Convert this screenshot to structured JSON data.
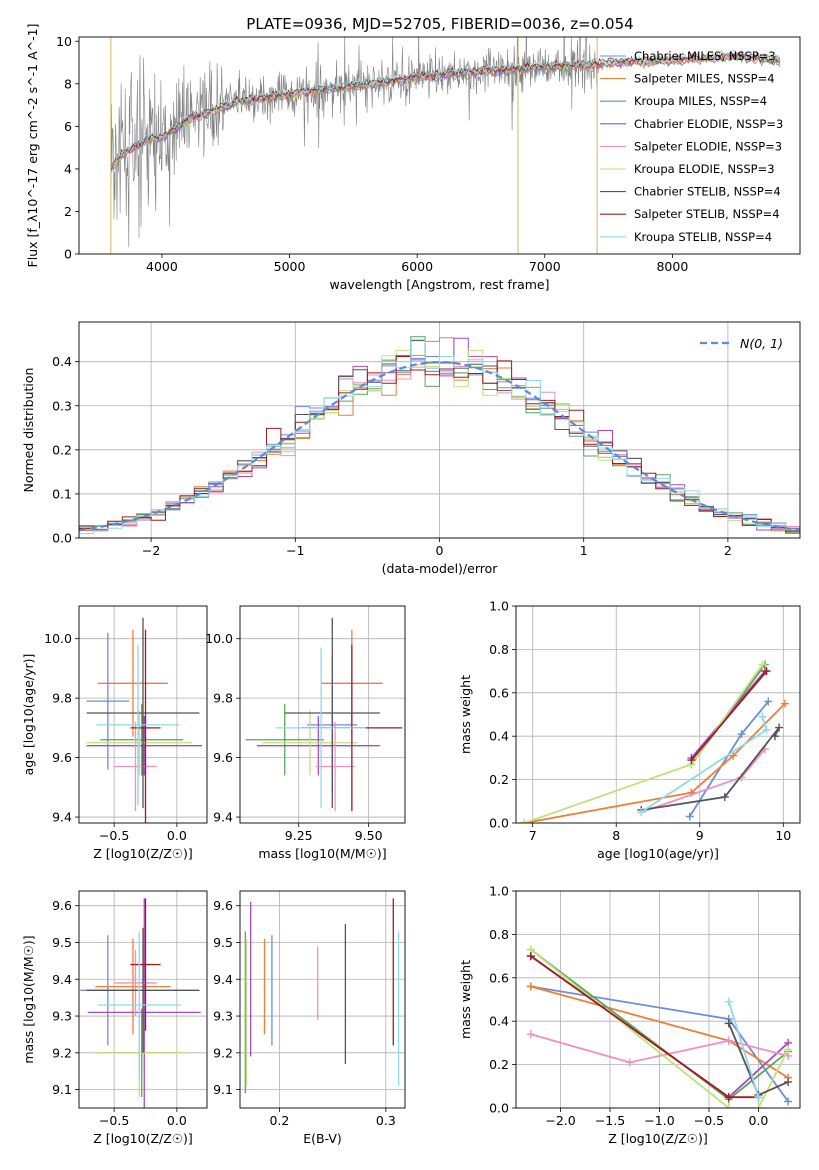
{
  "figure": {
    "title": "PLATE=0936, MJD=52705, FIBERID=0036, z=0.054"
  },
  "colors": {
    "observed": "#808080",
    "grid": "#b0b0b0",
    "series": [
      "#6a8fd8",
      "#ee7f3a",
      "#5aa55a",
      "#a64ac9",
      "#f28fc1",
      "#bfe27a",
      "#555555",
      "#a01c1c",
      "#8fd9e8"
    ]
  },
  "chart_data": [
    {
      "id": "spectrum",
      "type": "line",
      "xlabel": "wavelength [Angstrom, rest frame]",
      "ylabel": "Flux [f_λ10^-17 erg cm^-2 s^-1 A^-1]",
      "xlim": [
        3350,
        9000
      ],
      "ylim": [
        0,
        10.2
      ],
      "xticks": [
        4000,
        5000,
        6000,
        7000,
        8000
      ],
      "yticks": [
        0,
        2,
        4,
        6,
        8,
        10
      ],
      "grid": false,
      "legend_position": "right",
      "legend": [
        "Chabrier MILES, NSSP=3",
        "Salpeter MILES, NSSP=4",
        "Kroupa MILES, NSSP=4",
        "Chabrier ELODIE, NSSP=3",
        "Salpeter ELODIE, NSSP=3",
        "Kroupa ELODIE, NSSP=3",
        "Chabrier STELIB, NSSP=4",
        "Salpeter STELIB, NSSP=4",
        "Kroupa STELIB, NSSP=4"
      ],
      "continuum": {
        "wavelength": [
          3600,
          3700,
          3800,
          3900,
          4000,
          4200,
          4400,
          4600,
          5000,
          5500,
          6000,
          6500,
          7000,
          7400,
          7500,
          8000,
          8500,
          8800
        ],
        "flux": [
          4.0,
          4.7,
          5.1,
          5.4,
          5.5,
          6.3,
          6.7,
          7.2,
          7.5,
          7.9,
          8.3,
          8.6,
          8.8,
          8.9,
          9.0,
          9.1,
          9.3,
          9.1
        ]
      },
      "observed_range": [
        3600,
        7420
      ]
    },
    {
      "id": "residuals",
      "type": "line",
      "xlabel": "(data-model)/error",
      "ylabel": "Normed distribution",
      "xlim": [
        -2.5,
        2.5
      ],
      "ylim": [
        0,
        0.49
      ],
      "xticks": [
        -2,
        -1,
        0,
        1,
        2
      ],
      "yticks": [
        0.0,
        0.1,
        0.2,
        0.3,
        0.4
      ],
      "grid": true,
      "legend_position": "top-right",
      "legend": [
        "N(0, 1)"
      ],
      "bin_width": 0.1
    },
    {
      "id": "age-vs-Z",
      "type": "scatter",
      "xlabel": "Z [log10(Z/Z☉)]",
      "ylabel": "age  [log10(age/yr)]",
      "xlim": [
        -0.78,
        0.24
      ],
      "ylim": [
        9.38,
        10.11
      ],
      "xticks": [
        -0.5,
        0.0
      ],
      "yticks": [
        9.4,
        9.6,
        9.8,
        10.0
      ],
      "grid": true,
      "points": [
        {
          "x": -0.55,
          "xerr": 0.17,
          "y": 9.79,
          "yerr": 0.23
        },
        {
          "x": -0.35,
          "xerr": 0.28,
          "y": 9.85,
          "yerr": 0.18
        },
        {
          "x": -0.28,
          "xerr": 0.33,
          "y": 9.66,
          "yerr": 0.12
        },
        {
          "x": -0.26,
          "xerr": 0.46,
          "y": 9.64,
          "yerr": 0.1
        },
        {
          "x": -0.33,
          "xerr": 0.17,
          "y": 9.57,
          "yerr": 0.15
        },
        {
          "x": -0.3,
          "xerr": 0.42,
          "y": 9.65,
          "yerr": 0.11
        },
        {
          "x": -0.27,
          "xerr": 0.45,
          "y": 9.75,
          "yerr": 0.32
        },
        {
          "x": -0.25,
          "xerr": 0.12,
          "y": 9.7,
          "yerr": 0.33
        },
        {
          "x": -0.31,
          "xerr": 0.33,
          "y": 9.71,
          "yerr": 0.27
        }
      ]
    },
    {
      "id": "age-vs-mass",
      "type": "scatter",
      "xlabel": "mass [log10(M/M☉)]",
      "ylabel": "",
      "xlim": [
        9.04,
        9.63
      ],
      "ylim": [
        9.38,
        10.11
      ],
      "xticks": [
        9.25,
        9.5
      ],
      "yticks": [
        9.4,
        9.6,
        9.8,
        10.0
      ],
      "grid": true,
      "points": [
        {
          "x": 9.37,
          "xerr": 0.09,
          "y": 9.71,
          "yerr": 0.23
        },
        {
          "x": 9.44,
          "xerr": 0.11,
          "y": 9.85,
          "yerr": 0.18
        },
        {
          "x": 9.2,
          "xerr": 0.14,
          "y": 9.66,
          "yerr": 0.12
        },
        {
          "x": 9.32,
          "xerr": 0.22,
          "y": 9.64,
          "yerr": 0.1
        },
        {
          "x": 9.38,
          "xerr": 0.07,
          "y": 9.57,
          "yerr": 0.15
        },
        {
          "x": 9.29,
          "xerr": 0.17,
          "y": 9.65,
          "yerr": 0.11
        },
        {
          "x": 9.37,
          "xerr": 0.17,
          "y": 9.75,
          "yerr": 0.32
        },
        {
          "x": 9.44,
          "xerr": 0.18,
          "y": 9.7,
          "yerr": 0.28
        },
        {
          "x": 9.33,
          "xerr": 0.16,
          "y": 9.7,
          "yerr": 0.27
        }
      ]
    },
    {
      "id": "weights-vs-age",
      "type": "line",
      "xlabel": "age  [log10(age/yr)]",
      "ylabel": "mass weight",
      "xlim": [
        6.8,
        10.2
      ],
      "ylim": [
        0,
        1.0
      ],
      "xticks": [
        7,
        8,
        9,
        10
      ],
      "yticks": [
        0.0,
        0.2,
        0.4,
        0.6,
        0.8,
        1.0
      ],
      "grid": true,
      "series_x": [
        [
          8.88,
          9.5,
          9.82
        ],
        [
          6.9,
          8.9,
          9.4,
          10.02
        ],
        [
          8.9,
          9.78
        ],
        [
          8.9,
          9.78
        ],
        [
          8.3,
          9.5,
          9.78
        ],
        [
          6.9,
          8.9,
          9.75
        ],
        [
          8.3,
          9.3,
          9.95,
          9.9
        ],
        [
          8.9,
          9.8
        ],
        [
          8.3,
          9.8,
          9.75
        ]
      ],
      "series_y": [
        [
          0.03,
          0.41,
          0.56
        ],
        [
          0.0,
          0.14,
          0.31,
          0.55
        ],
        [
          0.27,
          0.73
        ],
        [
          0.3,
          0.7
        ],
        [
          0.05,
          0.21,
          0.34
        ],
        [
          0.0,
          0.27,
          0.73
        ],
        [
          0.06,
          0.12,
          0.44,
          0.4
        ],
        [
          0.29,
          0.7
        ],
        [
          0.05,
          0.43,
          0.49
        ]
      ]
    },
    {
      "id": "mass-vs-Z",
      "type": "scatter",
      "xlabel": "Z [log10(Z/Z☉)]",
      "ylabel": "mass [log10(M/M☉)]",
      "xlim": [
        -0.78,
        0.24
      ],
      "ylim": [
        9.05,
        9.64
      ],
      "xticks": [
        -0.5,
        0.0
      ],
      "yticks": [
        9.1,
        9.2,
        9.3,
        9.4,
        9.5,
        9.6
      ],
      "grid": true,
      "points": [
        {
          "x": -0.55,
          "xerr": 0.22,
          "y": 9.37,
          "yerr": 0.15
        },
        {
          "x": -0.35,
          "xerr": 0.3,
          "y": 9.38,
          "yerr": 0.13
        },
        {
          "x": -0.28,
          "xerr": 0.33,
          "y": 9.2,
          "yerr": 0.12
        },
        {
          "x": -0.26,
          "xerr": 0.45,
          "y": 9.31,
          "yerr": 0.31
        },
        {
          "x": -0.33,
          "xerr": 0.17,
          "y": 9.39,
          "yerr": 0.09
        },
        {
          "x": -0.3,
          "xerr": 0.37,
          "y": 9.2,
          "yerr": 0.12
        },
        {
          "x": -0.27,
          "xerr": 0.45,
          "y": 9.37,
          "yerr": 0.17
        },
        {
          "x": -0.25,
          "xerr": 0.12,
          "y": 9.44,
          "yerr": 0.18
        },
        {
          "x": -0.3,
          "xerr": 0.33,
          "y": 9.33,
          "yerr": 0.2
        }
      ]
    },
    {
      "id": "mass-vs-ebv",
      "type": "scatter",
      "xlabel": "E(B-V)",
      "ylabel": "",
      "xlim": [
        0.163,
        0.318
      ],
      "ylim": [
        9.05,
        9.64
      ],
      "xticks": [
        0.2,
        0.3
      ],
      "yticks": [
        9.1,
        9.2,
        9.3,
        9.4,
        9.5,
        9.6
      ],
      "grid": true,
      "points": [
        {
          "x": 0.193,
          "xerr": 0,
          "y": 9.37,
          "yerr": 0.15
        },
        {
          "x": 0.186,
          "xerr": 0,
          "y": 9.38,
          "yerr": 0.13
        },
        {
          "x": 0.168,
          "xerr": 0,
          "y": 9.31,
          "yerr": 0.22
        },
        {
          "x": 0.173,
          "xerr": 0,
          "y": 9.4,
          "yerr": 0.21
        },
        {
          "x": 0.236,
          "xerr": 0,
          "y": 9.39,
          "yerr": 0.1
        },
        {
          "x": 0.169,
          "xerr": 0,
          "y": 9.31,
          "yerr": 0.2
        },
        {
          "x": 0.262,
          "xerr": 0,
          "y": 9.36,
          "yerr": 0.19
        },
        {
          "x": 0.307,
          "xerr": 0,
          "y": 9.42,
          "yerr": 0.2
        },
        {
          "x": 0.312,
          "xerr": 0,
          "y": 9.32,
          "yerr": 0.21
        }
      ]
    },
    {
      "id": "weights-vs-Z",
      "type": "line",
      "xlabel": "Z [log10(Z/Z☉)]",
      "ylabel": "mass weight",
      "xlim": [
        -2.45,
        0.42
      ],
      "ylim": [
        0,
        1.0
      ],
      "xticks": [
        -2.0,
        -1.5,
        -1.0,
        -0.5,
        0.0
      ],
      "yticks": [
        0.0,
        0.2,
        0.4,
        0.6,
        0.8,
        1.0
      ],
      "grid": true,
      "series_x": [
        [
          -2.3,
          -0.3,
          0.3
        ],
        [
          -2.3,
          -0.3,
          0.3
        ],
        [
          -2.3,
          -0.3,
          0.3
        ],
        [
          -2.3,
          -0.3,
          0.3
        ],
        [
          -2.3,
          -1.3,
          -0.3,
          0.3
        ],
        [
          -2.3,
          -0.3,
          0.0,
          0.3
        ],
        [
          -0.3,
          0.0,
          0.3
        ],
        [
          -2.3,
          -0.3,
          0.0
        ],
        [
          -0.3,
          0.0
        ]
      ],
      "series_y": [
        [
          0.56,
          0.41,
          0.03
        ],
        [
          0.56,
          0.31,
          0.14
        ],
        [
          0.73,
          0.04,
          0.26
        ],
        [
          0.7,
          0.05,
          0.3
        ],
        [
          0.34,
          0.21,
          0.31,
          0.24
        ],
        [
          0.73,
          0.0,
          0.0,
          0.27
        ],
        [
          0.39,
          0.06,
          0.12
        ],
        [
          0.7,
          0.05,
          0.05
        ],
        [
          0.49,
          0.05
        ]
      ]
    }
  ]
}
